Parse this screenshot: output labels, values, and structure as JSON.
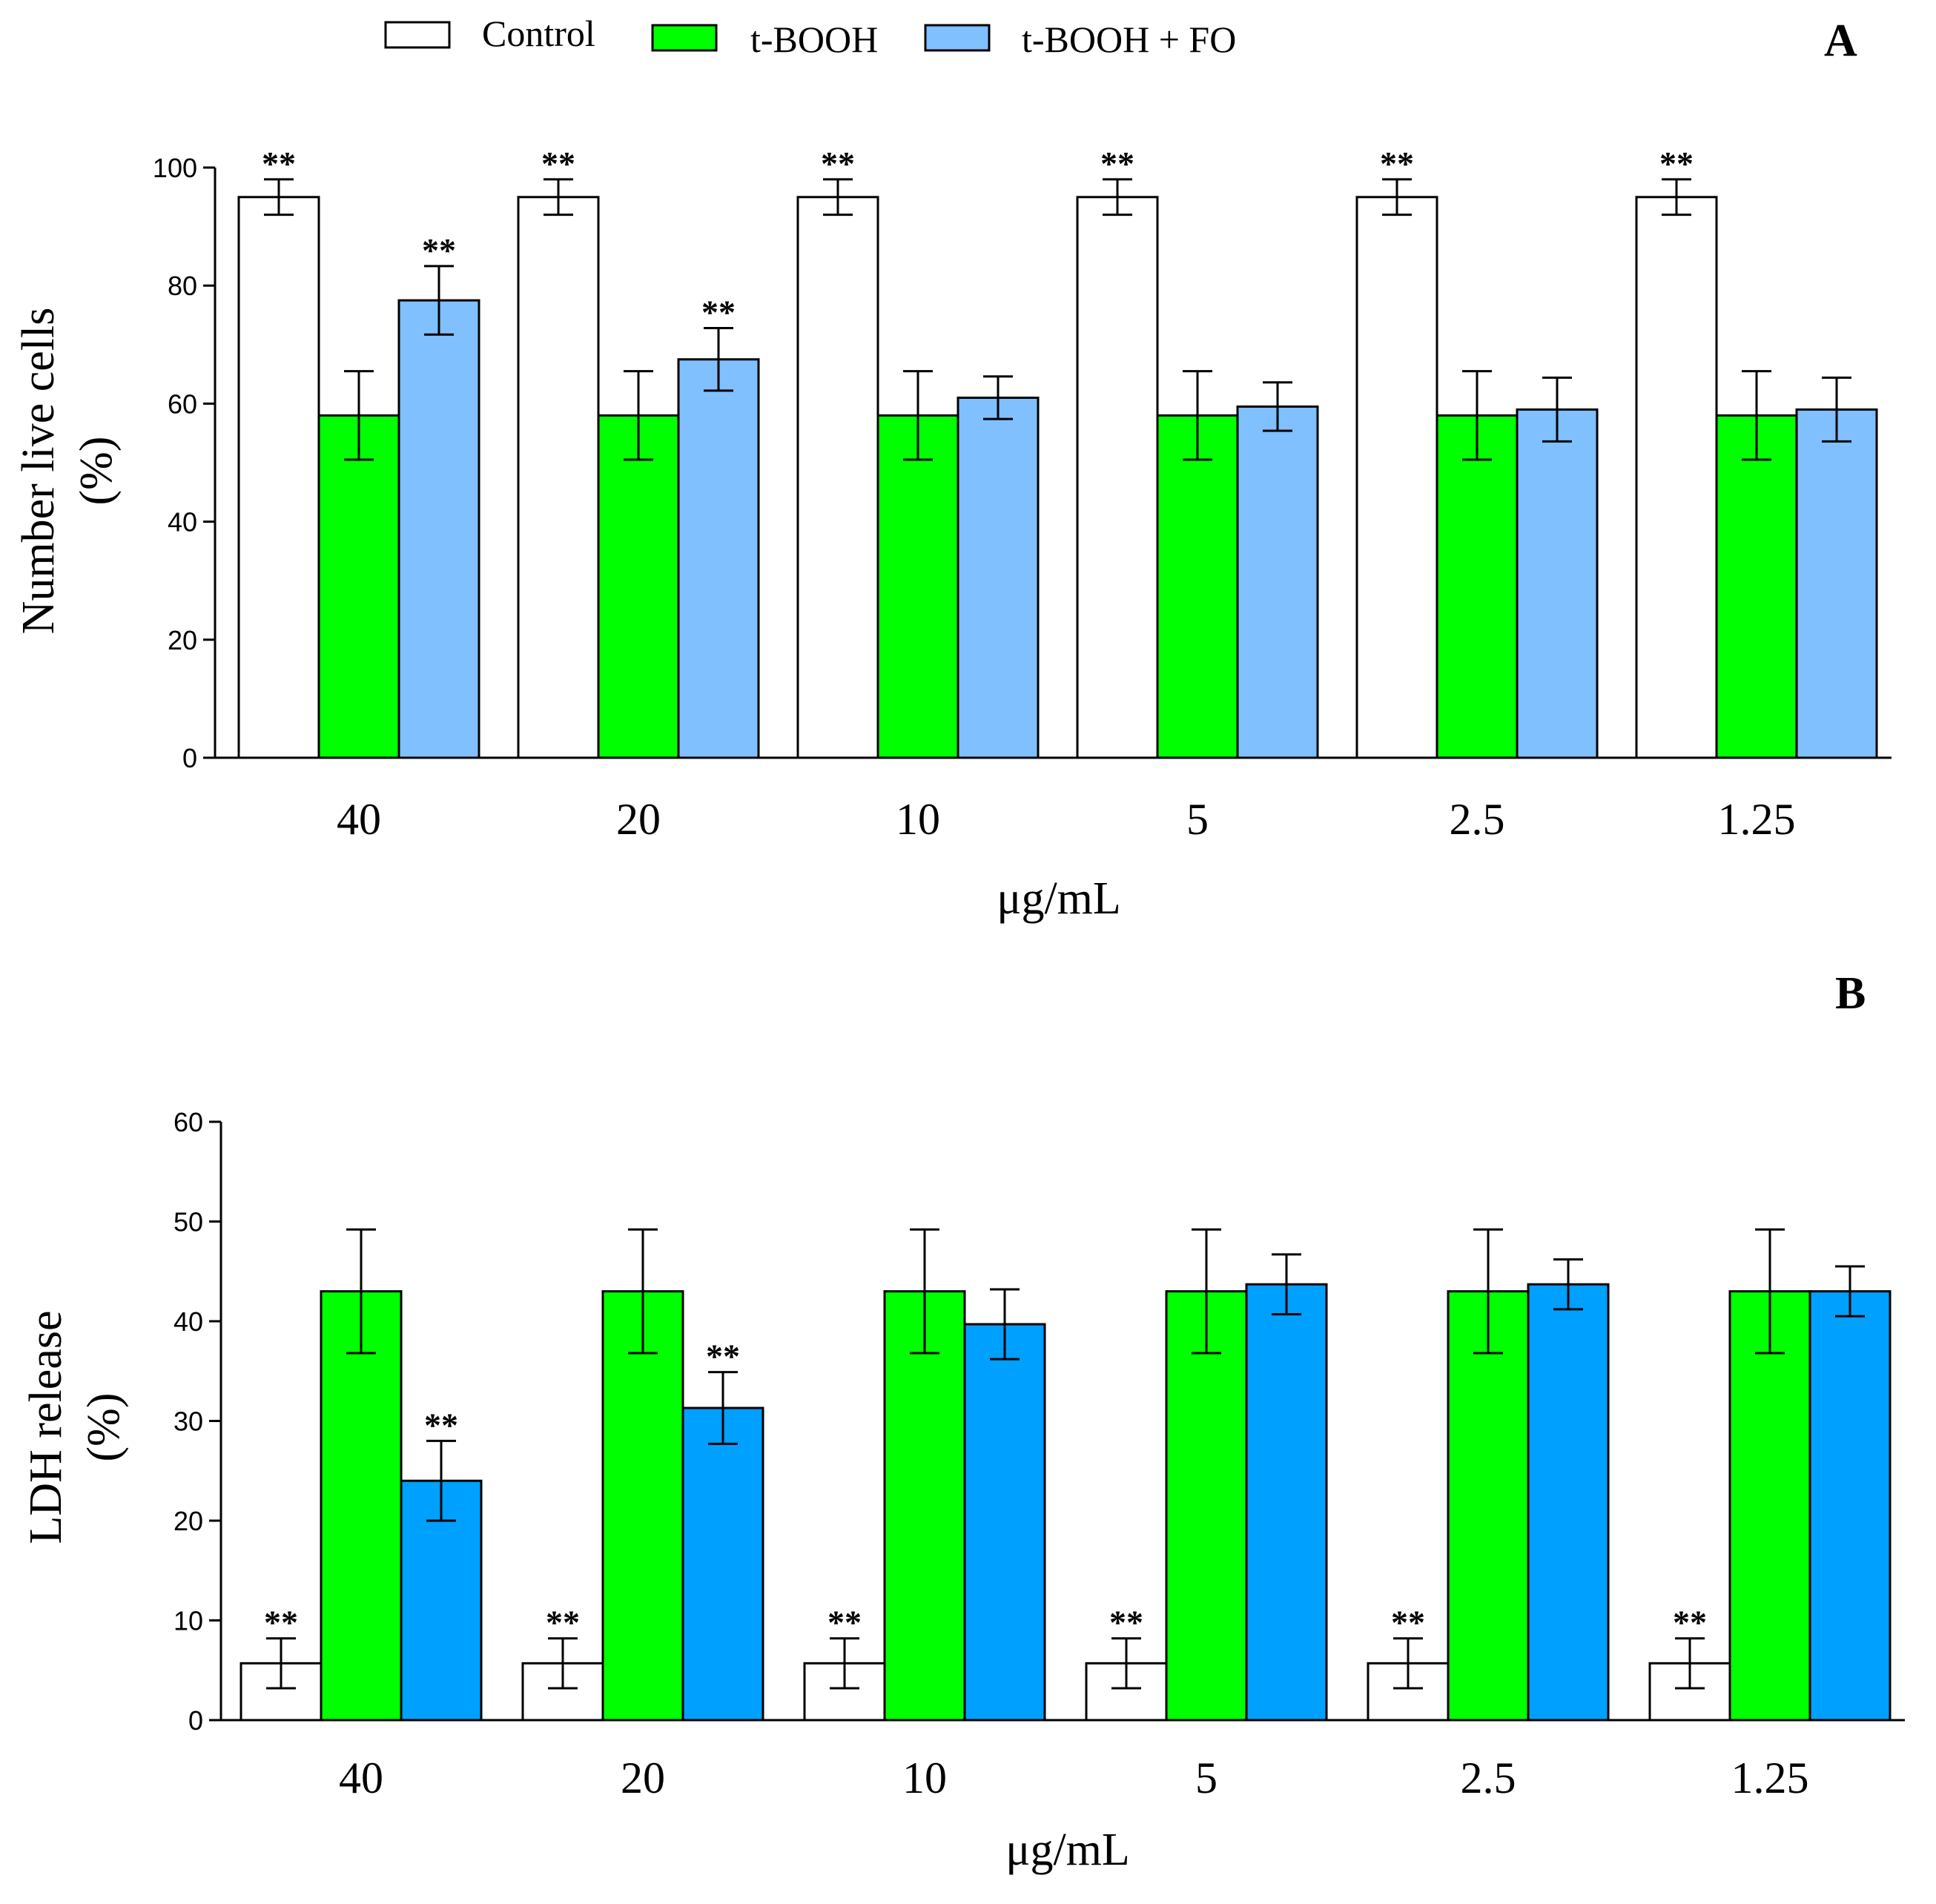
{
  "legend": {
    "entries": [
      {
        "label": "Control",
        "color": "#ffffff"
      },
      {
        "label": "t-BOOH",
        "color": "#00ff00"
      },
      {
        "label": "t-BOOH + FO",
        "color": "#80c0ff"
      }
    ]
  },
  "chart_data": [
    {
      "panel": "A",
      "type": "bar",
      "xlabel": "μg/mL",
      "ylabel_line1": "Number live cells",
      "ylabel_line2": "(%)",
      "ylim": [
        0,
        100
      ],
      "yticks": [
        0,
        20,
        40,
        60,
        80,
        100
      ],
      "categories": [
        "40",
        "20",
        "10",
        "5",
        "2.5",
        "1.25"
      ],
      "series": [
        {
          "name": "Control",
          "color": "#ffffff",
          "values": [
            95,
            95,
            95,
            95,
            95,
            95
          ],
          "errors": [
            3,
            3,
            3,
            3,
            3,
            3
          ],
          "significance": [
            "**",
            "**",
            "**",
            "**",
            "**",
            "**"
          ]
        },
        {
          "name": "t-BOOH",
          "color": "#00ff00",
          "values": [
            58,
            58,
            58,
            58,
            58,
            58
          ],
          "errors": [
            7.5,
            7.5,
            7.5,
            7.5,
            7.5,
            7.5
          ],
          "significance": [
            "",
            "",
            "",
            "",
            "",
            ""
          ]
        },
        {
          "name": "t-BOOH + FO",
          "color": "#80c0ff",
          "values": [
            77.5,
            67.5,
            61,
            59.5,
            59,
            59
          ],
          "errors": [
            5.8,
            5.3,
            3.6,
            4.1,
            5.4,
            5.4
          ],
          "significance": [
            "**",
            "**",
            "",
            "",
            "",
            ""
          ]
        }
      ]
    },
    {
      "panel": "B",
      "type": "bar",
      "xlabel": "μg/mL",
      "ylabel_line1": "LDH release",
      "ylabel_line2": "(%)",
      "ylim": [
        0,
        60
      ],
      "yticks": [
        0,
        10,
        20,
        30,
        40,
        50,
        60
      ],
      "categories": [
        "40",
        "20",
        "10",
        "5",
        "2.5",
        "1.25"
      ],
      "series": [
        {
          "name": "Control",
          "color": "#ffffff",
          "values": [
            5.7,
            5.7,
            5.7,
            5.7,
            5.7,
            5.7
          ],
          "errors": [
            2.5,
            2.5,
            2.5,
            2.5,
            2.5,
            2.5
          ],
          "significance": [
            "**",
            "**",
            "**",
            "**",
            "**",
            "**"
          ]
        },
        {
          "name": "t-BOOH",
          "color": "#00ff00",
          "values": [
            43,
            43,
            43,
            43,
            43,
            43
          ],
          "errors": [
            6.2,
            6.2,
            6.2,
            6.2,
            6.2,
            6.2
          ],
          "significance": [
            "",
            "",
            "",
            "",
            "",
            ""
          ]
        },
        {
          "name": "t-BOOH + FO",
          "color": "#00a0ff",
          "values": [
            24,
            31.3,
            39.7,
            43.7,
            43.7,
            43
          ],
          "errors": [
            4,
            3.6,
            3.5,
            3,
            2.5,
            2.5
          ],
          "significance": [
            "**",
            "**",
            "",
            "",
            "",
            ""
          ]
        }
      ]
    }
  ]
}
